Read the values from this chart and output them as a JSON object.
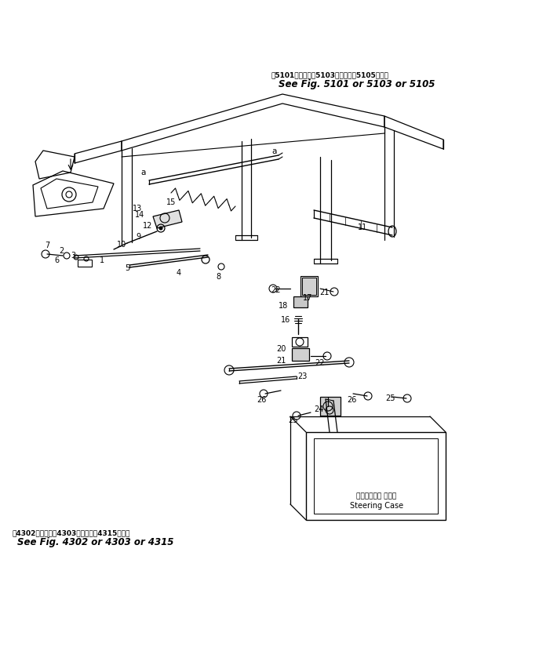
{
  "bg_color": "#ffffff",
  "line_color": "#000000",
  "fig_width": 7.01,
  "fig_height": 8.48,
  "dpi": 100,
  "annotation_top_jp": "第5101図または第5103図または第5105図参照",
  "annotation_top_en": "See Fig. 5101 or 5103 or 5105",
  "annotation_bot_jp": "第4302図または第4303図または第4315図参照",
  "annotation_bot_en": "See Fig. 4302 or 4303 or 4315",
  "steering_case_jp": "ステアリング ケース",
  "steering_case_en": "Steering Case",
  "parts": [
    [
      60,
      535,
      "7"
    ],
    [
      78,
      528,
      "2"
    ],
    [
      93,
      522,
      "3"
    ],
    [
      72,
      516,
      "6"
    ],
    [
      130,
      516,
      "1"
    ],
    [
      162,
      506,
      "5"
    ],
    [
      228,
      500,
      "4"
    ],
    [
      278,
      495,
      "8"
    ],
    [
      155,
      536,
      "10"
    ],
    [
      176,
      546,
      "9"
    ],
    [
      188,
      560,
      "12"
    ],
    [
      178,
      574,
      "14"
    ],
    [
      175,
      582,
      "13"
    ],
    [
      218,
      590,
      "15"
    ],
    [
      462,
      558,
      "11"
    ],
    [
      351,
      478,
      "22"
    ],
    [
      392,
      468,
      "17"
    ],
    [
      413,
      475,
      "21"
    ],
    [
      361,
      458,
      "18"
    ],
    [
      364,
      440,
      "16"
    ],
    [
      358,
      403,
      "20"
    ],
    [
      358,
      388,
      "21"
    ],
    [
      408,
      385,
      "22"
    ],
    [
      385,
      368,
      "23"
    ],
    [
      333,
      338,
      "26"
    ],
    [
      448,
      338,
      "26"
    ],
    [
      497,
      340,
      "25"
    ],
    [
      406,
      326,
      "24"
    ],
    [
      373,
      312,
      "25"
    ]
  ]
}
